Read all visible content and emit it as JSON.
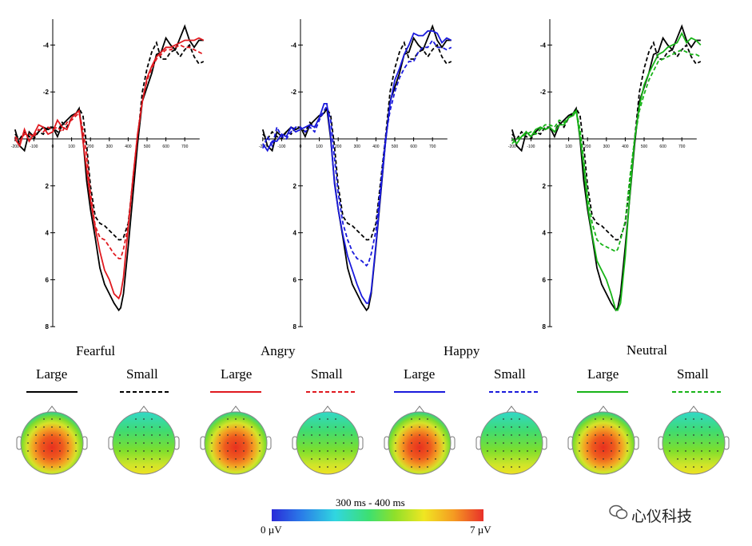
{
  "conditions": [
    "Fearful",
    "Angry",
    "Happy",
    "Neutral"
  ],
  "legend": [
    {
      "label": "Large",
      "color": "#000000",
      "dash": false
    },
    {
      "label": "Small",
      "color": "#000000",
      "dash": true
    },
    {
      "label": "Large",
      "color": "#e0191f",
      "dash": false
    },
    {
      "label": "Small",
      "color": "#e0191f",
      "dash": true
    },
    {
      "label": "Large",
      "color": "#1a1adc",
      "dash": false
    },
    {
      "label": "Small",
      "color": "#1a1adc",
      "dash": true
    },
    {
      "label": "Large",
      "color": "#18b418",
      "dash": false
    },
    {
      "label": "Small",
      "color": "#18b418",
      "dash": true
    }
  ],
  "scale": {
    "title": "300 ms - 400 ms",
    "min_label": "0 µV",
    "max_label": "7 µV"
  },
  "watermark": "心仪科技",
  "chart_data": {
    "type": "line",
    "x_unit": "ms",
    "y_unit": "µV",
    "xlim": [
      -200,
      800
    ],
    "ylim": [
      -5,
      8
    ],
    "y_inverted": true,
    "x_ticks": [
      -200,
      -100,
      0,
      100,
      200,
      300,
      400,
      500,
      600,
      700
    ],
    "y_ticks": [
      -4,
      -2,
      2,
      4,
      6,
      8
    ],
    "x": [
      -200,
      -175,
      -150,
      -125,
      -100,
      -75,
      -50,
      -25,
      0,
      25,
      50,
      75,
      100,
      125,
      140,
      160,
      180,
      200,
      225,
      250,
      275,
      300,
      325,
      350,
      360,
      375,
      400,
      425,
      450,
      475,
      500,
      525,
      550,
      575,
      600,
      625,
      650,
      675,
      700,
      725,
      750,
      775,
      800
    ],
    "reference": {
      "large": [
        -0.4,
        0.3,
        0.5,
        -0.3,
        -0.1,
        -0.3,
        -0.5,
        -0.4,
        -0.5,
        -0.1,
        -0.6,
        -0.8,
        -1.0,
        -1.1,
        -1.3,
        0.0,
        1.8,
        3.0,
        4.2,
        5.5,
        6.2,
        6.6,
        7.0,
        7.3,
        7.2,
        6.6,
        4.6,
        2.4,
        0.2,
        -1.6,
        -2.2,
        -2.8,
        -3.6,
        -3.7,
        -4.3,
        -4.0,
        -3.8,
        -4.3,
        -4.8,
        -4.2,
        -3.9,
        -4.2,
        -4.2
      ],
      "small": [
        -0.2,
        0.0,
        -0.3,
        -0.1,
        0.0,
        -0.3,
        -0.2,
        -0.5,
        -0.5,
        -0.3,
        -0.7,
        -0.5,
        -0.9,
        -1.1,
        -1.3,
        -1.0,
        0.3,
        2.0,
        3.3,
        3.6,
        3.7,
        3.9,
        4.1,
        4.3,
        4.3,
        4.2,
        3.6,
        1.8,
        0.0,
        -2.0,
        -3.0,
        -3.7,
        -4.1,
        -3.4,
        -3.4,
        -3.7,
        -3.8,
        -3.5,
        -3.8,
        -4.0,
        -3.5,
        -3.2,
        -3.3
      ]
    },
    "series": [
      {
        "name": "Fearful",
        "color": "#e0191f",
        "large": [
          0.0,
          0.3,
          -0.4,
          0.1,
          -0.2,
          -0.6,
          -0.5,
          -0.2,
          -0.3,
          -0.8,
          -0.5,
          -0.4,
          -0.9,
          -1.1,
          -1.2,
          0.1,
          1.3,
          2.6,
          3.8,
          4.8,
          5.6,
          6.0,
          6.6,
          6.8,
          6.6,
          5.9,
          3.8,
          1.7,
          -0.2,
          -1.6,
          -2.6,
          -3.1,
          -3.5,
          -3.7,
          -3.9,
          -3.9,
          -4.0,
          -4.1,
          -4.2,
          -4.2,
          -4.2,
          -4.3,
          -4.2
        ],
        "small": [
          -0.1,
          0.1,
          -0.2,
          -0.2,
          -0.1,
          -0.4,
          -0.3,
          -0.5,
          -0.4,
          -0.5,
          -0.3,
          -0.7,
          -0.8,
          -1.0,
          -1.1,
          -0.4,
          0.7,
          2.3,
          3.7,
          4.2,
          4.3,
          4.6,
          4.9,
          5.1,
          5.1,
          4.7,
          3.7,
          1.7,
          -0.2,
          -1.6,
          -2.5,
          -3.0,
          -3.4,
          -3.6,
          -3.8,
          -3.8,
          -3.9,
          -4.0,
          -3.9,
          -3.9,
          -3.8,
          -3.7,
          -3.6
        ]
      },
      {
        "name": "Angry",
        "color": "#1a1adc",
        "large": [
          0.2,
          0.5,
          0.1,
          0.1,
          -0.2,
          -0.1,
          -0.5,
          -0.3,
          -0.4,
          -0.5,
          -0.6,
          -0.5,
          -0.9,
          -1.5,
          -1.5,
          -0.1,
          1.9,
          3.0,
          4.1,
          5.0,
          5.6,
          6.2,
          6.7,
          7.0,
          7.0,
          6.5,
          4.5,
          2.3,
          0.2,
          -1.5,
          -2.5,
          -3.0,
          -3.6,
          -4.0,
          -4.5,
          -4.4,
          -4.4,
          -4.6,
          -4.6,
          -4.5,
          -4.1,
          -4.3,
          -4.2
        ],
        "small": [
          0.4,
          -0.1,
          0.3,
          -0.5,
          -0.1,
          0.0,
          -0.3,
          -0.5,
          -0.5,
          -0.3,
          -0.5,
          -0.3,
          -0.8,
          -1.2,
          -1.4,
          -0.8,
          0.8,
          2.3,
          3.6,
          4.3,
          4.8,
          5.1,
          5.2,
          5.4,
          5.3,
          4.9,
          3.9,
          2.0,
          0.0,
          -1.2,
          -2.0,
          -2.6,
          -3.0,
          -3.3,
          -3.3,
          -3.7,
          -3.9,
          -3.9,
          -4.2,
          -3.9,
          -3.9,
          -3.8,
          -3.9
        ]
      },
      {
        "name": "Happy",
        "color": "#18b418",
        "large": [
          0.0,
          0.2,
          -0.1,
          -0.3,
          -0.1,
          -0.4,
          -0.5,
          -0.4,
          -0.5,
          -0.3,
          -0.6,
          -0.6,
          -0.9,
          -1.0,
          -1.2,
          -0.1,
          1.2,
          2.8,
          4.1,
          5.2,
          5.6,
          6.0,
          6.6,
          7.3,
          7.3,
          7.0,
          5.0,
          2.3,
          0.0,
          -1.4,
          -2.3,
          -2.8,
          -3.2,
          -3.6,
          -3.7,
          -3.9,
          -4.0,
          -4.1,
          -4.5,
          -4.1,
          -4.3,
          -4.2,
          -4.0
        ],
        "small": [
          0.2,
          0.0,
          -0.1,
          -0.2,
          -0.3,
          -0.2,
          -0.4,
          -0.6,
          -0.6,
          -0.5,
          -0.8,
          -0.7,
          -0.9,
          -1.1,
          -1.2,
          -0.4,
          0.9,
          2.4,
          3.6,
          4.3,
          4.5,
          4.6,
          4.7,
          4.8,
          4.7,
          4.3,
          3.5,
          1.6,
          0.0,
          -1.2,
          -1.9,
          -2.5,
          -2.9,
          -3.3,
          -3.4,
          -3.5,
          -3.6,
          -3.7,
          -3.8,
          -3.7,
          -3.6,
          -3.6,
          -3.5
        ]
      }
    ]
  }
}
